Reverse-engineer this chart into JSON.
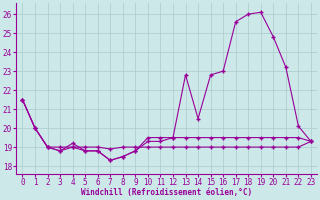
{
  "xlabel": "Windchill (Refroidissement éolien,°C)",
  "background_color": "#cce8e8",
  "grid_color": "#aacccc",
  "line_color": "#990099",
  "xlim": [
    -0.5,
    23.5
  ],
  "ylim": [
    17.6,
    26.6
  ],
  "yticks": [
    18,
    19,
    20,
    21,
    22,
    23,
    24,
    25,
    26
  ],
  "xticks": [
    0,
    1,
    2,
    3,
    4,
    5,
    6,
    7,
    8,
    9,
    10,
    11,
    12,
    13,
    14,
    15,
    16,
    17,
    18,
    19,
    20,
    21,
    22,
    23
  ],
  "line1_x": [
    0,
    1,
    2,
    3,
    4,
    5,
    6,
    7,
    8,
    9,
    10,
    11,
    12,
    13,
    14,
    15,
    16,
    17,
    18,
    19,
    20,
    21,
    22,
    23
  ],
  "line1_y": [
    21.5,
    20.0,
    19.0,
    19.0,
    19.0,
    19.0,
    19.0,
    18.9,
    19.0,
    19.0,
    19.0,
    19.0,
    19.0,
    19.0,
    19.0,
    19.0,
    19.0,
    19.0,
    19.0,
    19.0,
    19.0,
    19.0,
    19.0,
    19.3
  ],
  "line2_x": [
    0,
    1,
    2,
    3,
    4,
    5,
    6,
    7,
    8,
    9,
    10,
    11,
    12,
    13,
    14,
    15,
    16,
    17,
    18,
    19,
    20,
    21,
    22,
    23
  ],
  "line2_y": [
    21.5,
    20.0,
    19.0,
    18.8,
    19.0,
    18.8,
    18.8,
    18.3,
    18.5,
    18.8,
    19.3,
    19.3,
    19.5,
    19.5,
    19.5,
    19.5,
    19.5,
    19.5,
    19.5,
    19.5,
    19.5,
    19.5,
    19.5,
    19.3
  ],
  "line3_x": [
    0,
    1,
    2,
    3,
    4,
    5,
    6,
    7,
    8,
    9,
    10,
    11,
    12,
    13,
    14,
    15,
    16,
    17,
    18,
    19,
    20,
    21,
    22,
    23
  ],
  "line3_y": [
    21.5,
    20.0,
    19.0,
    18.8,
    19.2,
    18.8,
    18.8,
    18.3,
    18.5,
    18.8,
    19.5,
    19.5,
    19.5,
    22.8,
    20.5,
    22.8,
    23.0,
    25.6,
    26.0,
    26.1,
    24.8,
    23.2,
    20.1,
    19.3
  ]
}
